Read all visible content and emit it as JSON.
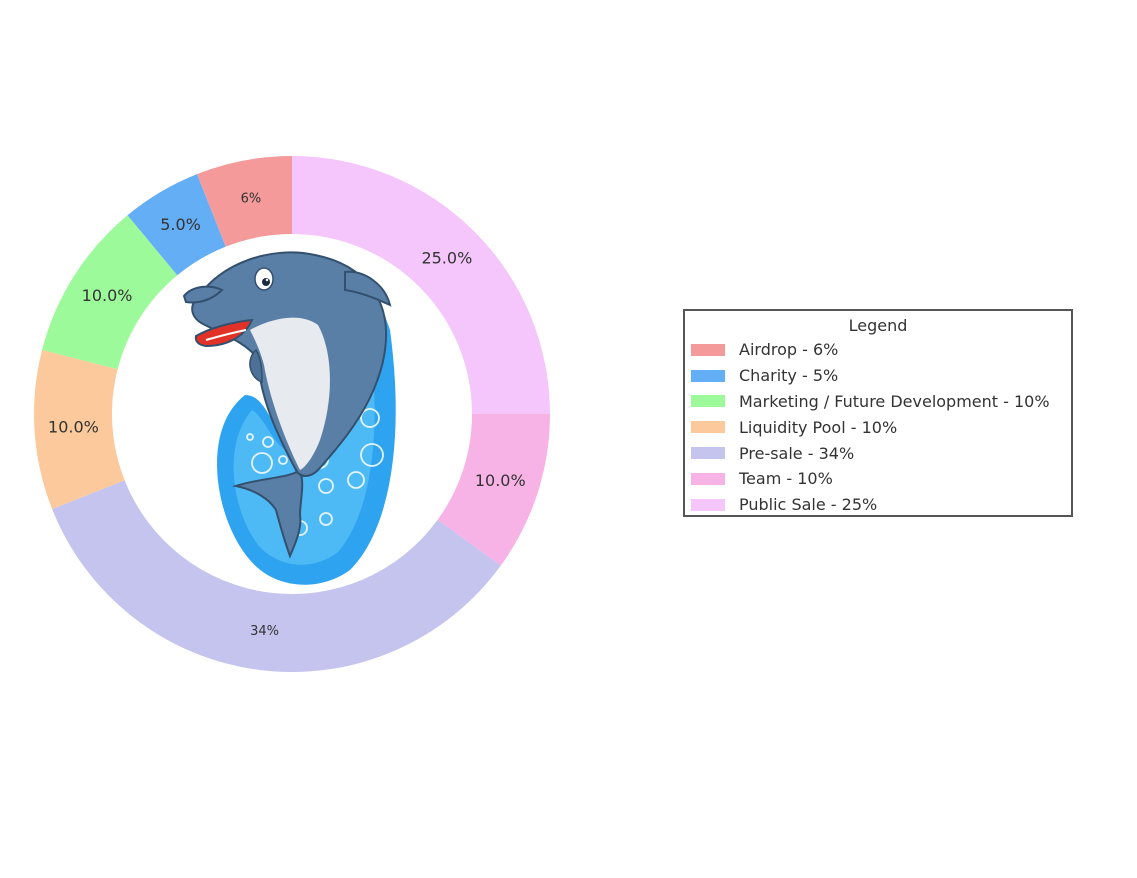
{
  "chart_data": {
    "type": "pie",
    "variant": "donut",
    "slices": [
      {
        "name": "Public Sale",
        "value": 25,
        "label": "25.0%",
        "color": "#f4c6fb"
      },
      {
        "name": "Team",
        "value": 10,
        "label": "10.0%",
        "color": "#f8b3e6"
      },
      {
        "name": "Pre-sale",
        "value": 34,
        "label": "34%",
        "color": "#c4c4ef"
      },
      {
        "name": "Liquidity Pool",
        "value": 10,
        "label": "10.0%",
        "color": "#fbc99c"
      },
      {
        "name": "Marketing / Future Development",
        "value": 10,
        "label": "10.0%",
        "color": "#9dfa9a"
      },
      {
        "name": "Charity",
        "value": 5,
        "label": "5.0%",
        "color": "#64aef5"
      },
      {
        "name": "Airdrop",
        "value": 6,
        "label": "6%",
        "color": "#f59a9a"
      }
    ],
    "legend": {
      "title": "Legend",
      "placement": "right",
      "items": [
        {
          "label": "Airdrop - 6%",
          "color": "#f59a9a"
        },
        {
          "label": "Charity - 5%",
          "color": "#64aef5"
        },
        {
          "label": "Marketing / Future Development - 10%",
          "color": "#9dfa9a"
        },
        {
          "label": "Liquidity Pool - 10%",
          "color": "#fbc99c"
        },
        {
          "label": "Pre-sale - 34%",
          "color": "#c4c4ef"
        },
        {
          "label": "Team - 10%",
          "color": "#f8b3e6"
        },
        {
          "label": "Public Sale - 25%",
          "color": "#f4c6fb"
        }
      ]
    },
    "center_image": "dolphin-mascot"
  }
}
